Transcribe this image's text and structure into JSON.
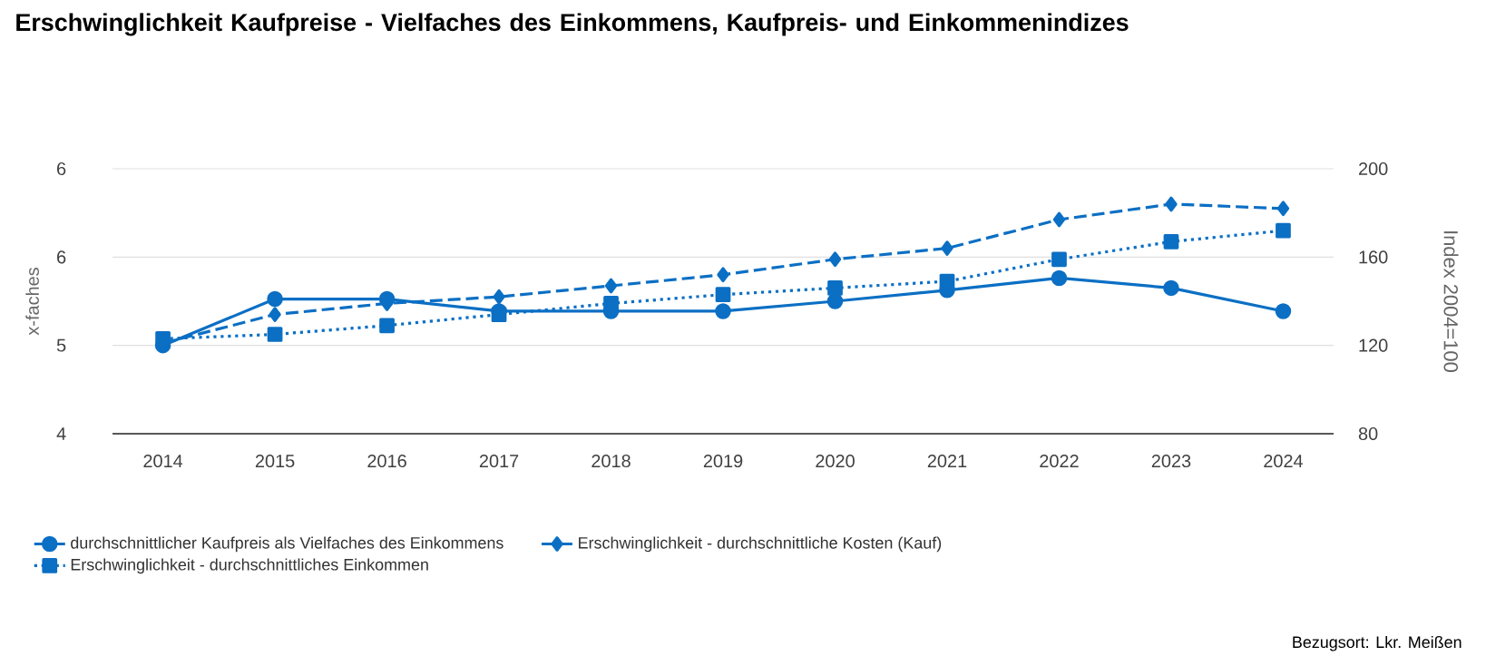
{
  "chart_data": {
    "type": "line",
    "title": "Erschwinglichkeit Kaufpreise - Vielfaches des Einkommens, Kaufpreis- und Einkommenindizes",
    "ylabel": "x-faches",
    "y2label": "Index 2004=100",
    "categories": [
      "2014",
      "2015",
      "2016",
      "2017",
      "2018",
      "2019",
      "2020",
      "2021",
      "2022",
      "2023",
      "2024"
    ],
    "ylim": [
      4,
      6.4
    ],
    "yticks": [
      {
        "value": 4,
        "label": "4"
      },
      {
        "value": 4.8,
        "label": "5"
      },
      {
        "value": 5.6,
        "label": "6"
      },
      {
        "value": 6.4,
        "label": "6"
      }
    ],
    "y2lim": [
      80,
      200
    ],
    "y2ticks": [
      80,
      120,
      160,
      200
    ],
    "grid": "y",
    "legend": "bottom",
    "series": [
      {
        "name": "durchschnittlicher Kaufpreis als Vielfaches des Einkommens",
        "color": "#0b6fc4",
        "marker": "circle",
        "line_style": "solid",
        "values": [
          4.8,
          5.22,
          5.22,
          5.11,
          5.11,
          5.11,
          5.2,
          5.3,
          5.41,
          5.32,
          5.11
        ]
      },
      {
        "name": "Erschwinglichkeit - durchschnittliche Kosten (Kauf)",
        "color": "#0b6fc4",
        "marker": "diamond",
        "line_style": "dashed",
        "axis": "y2",
        "values": [
          121,
          134,
          139,
          142,
          147,
          152,
          159,
          164,
          177,
          184,
          182
        ]
      },
      {
        "name": "Erschwinglichkeit - durchschnittliches Einkommen",
        "color": "#0b6fc4",
        "marker": "square",
        "line_style": "dotted",
        "axis": "y2",
        "values": [
          123,
          125,
          129,
          134,
          139,
          143,
          146,
          149,
          159,
          167,
          172
        ]
      }
    ],
    "annotations": [
      "Bezugsort: Lkr. Meißen"
    ]
  }
}
